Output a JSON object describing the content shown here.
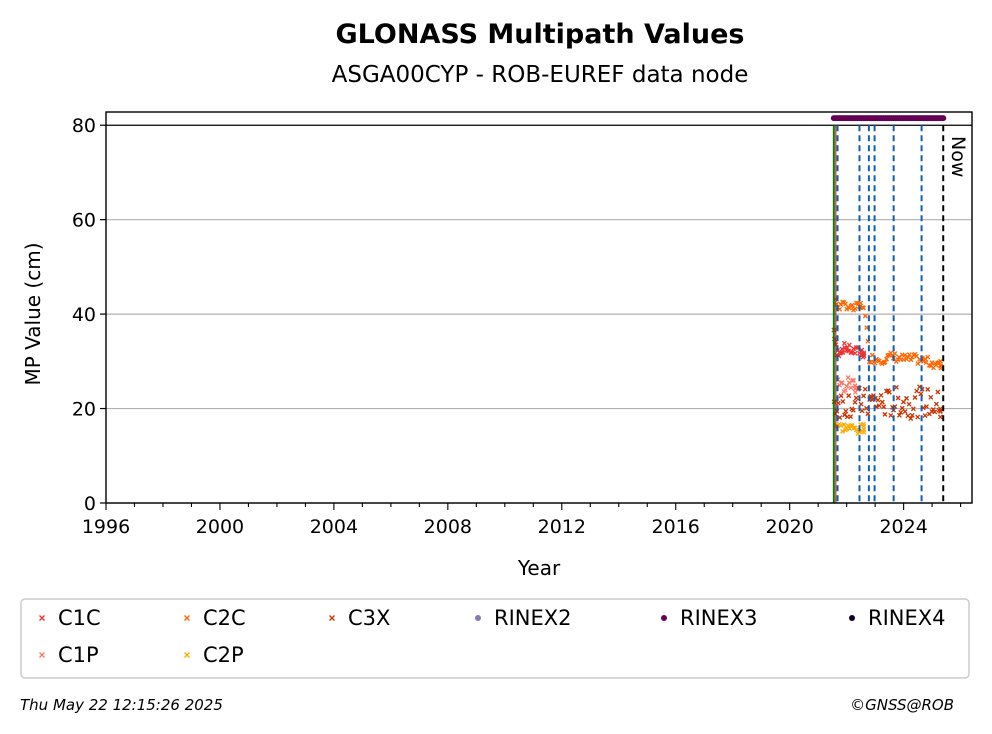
{
  "chart_data": {
    "type": "scatter",
    "title": "GLONASS Multipath Values",
    "subtitle": "ASGA00CYP - ROB-EUREF data node",
    "xlabel": "Year",
    "ylabel": "MP Value (cm)",
    "xlim": [
      1996,
      2026.4
    ],
    "ylim": [
      0,
      82.8
    ],
    "x_ticks": [
      "1996",
      "2000",
      "2004",
      "2008",
      "2012",
      "2016",
      "2020",
      "2024"
    ],
    "y_ticks": [
      "0",
      "20",
      "40",
      "60",
      "80"
    ],
    "grid": "horizontal",
    "reference_line_y": 80,
    "now_label": "Now",
    "now_x": 2025.39,
    "start_line_x": 2021.55,
    "event_lines_x": [
      2021.68,
      2022.45,
      2022.78,
      2022.98,
      2023.65,
      2024.63
    ],
    "series": [
      {
        "name": "C1C",
        "color": "#ee3333",
        "marker": "x",
        "points": [
          [
            2021.55,
            36.5
          ],
          [
            2021.65,
            31.5
          ],
          [
            2021.8,
            32.5
          ],
          [
            2021.95,
            33.0
          ],
          [
            2022.1,
            32.5
          ],
          [
            2022.3,
            32.0
          ],
          [
            2022.5,
            32.3
          ],
          [
            2022.6,
            31.5
          ]
        ]
      },
      {
        "name": "C2C",
        "color": "#ff6600",
        "marker": "x",
        "points": [
          [
            2021.6,
            42.5
          ],
          [
            2021.8,
            41.5
          ],
          [
            2022.0,
            42.0
          ],
          [
            2022.2,
            41.0
          ],
          [
            2022.4,
            41.5
          ],
          [
            2022.6,
            42.0
          ],
          [
            2022.8,
            30.8
          ],
          [
            2023.0,
            30.5
          ],
          [
            2023.3,
            30.5
          ],
          [
            2023.6,
            31.0
          ],
          [
            2024.0,
            30.5
          ],
          [
            2024.4,
            30.5
          ],
          [
            2024.8,
            30.0
          ],
          [
            2025.1,
            29.5
          ],
          [
            2025.3,
            29.2
          ]
        ]
      },
      {
        "name": "C3X",
        "color": "#cc3300",
        "marker": "x",
        "points": [
          [
            2021.55,
            21.0
          ],
          [
            2022.5,
            21.5
          ],
          [
            2022.7,
            21.0
          ],
          [
            2023.0,
            21.5
          ],
          [
            2023.4,
            21.0
          ],
          [
            2023.8,
            21.5
          ],
          [
            2024.2,
            21.0
          ],
          [
            2024.6,
            21.5
          ],
          [
            2025.0,
            21.0
          ],
          [
            2025.3,
            20.5
          ]
        ]
      },
      {
        "name": "RINEX2",
        "color": "#8877bb",
        "marker": "dot",
        "points": []
      },
      {
        "name": "RINEX3",
        "color": "#660055",
        "marker": "dot",
        "points": [
          [
            2021.55,
            81.5
          ],
          [
            2025.39,
            81.5
          ]
        ]
      },
      {
        "name": "RINEX4",
        "color": "#110022",
        "marker": "dot",
        "points": []
      },
      {
        "name": "C1P",
        "color": "#ff7766",
        "marker": "x",
        "points": [
          [
            2021.7,
            25.0
          ],
          [
            2021.9,
            24.5
          ],
          [
            2022.1,
            25.5
          ],
          [
            2022.3,
            25.0
          ]
        ]
      },
      {
        "name": "C2P",
        "color": "#ffaa00",
        "marker": "x",
        "points": [
          [
            2021.6,
            16.5
          ],
          [
            2021.8,
            16.0
          ],
          [
            2022.0,
            16.0
          ],
          [
            2022.2,
            15.8
          ],
          [
            2022.4,
            15.5
          ],
          [
            2022.6,
            15.8
          ]
        ]
      }
    ]
  },
  "legend": {
    "row1": [
      {
        "name": "C1C",
        "color": "#ee3333",
        "marker": "x"
      },
      {
        "name": "C2C",
        "color": "#ff6600",
        "marker": "x"
      },
      {
        "name": "C3X",
        "color": "#cc3300",
        "marker": "x"
      },
      {
        "name": "RINEX2",
        "color": "#8877bb",
        "marker": "dot"
      },
      {
        "name": "RINEX3",
        "color": "#660055",
        "marker": "dot"
      },
      {
        "name": "RINEX4",
        "color": "#110022",
        "marker": "dot"
      }
    ],
    "row2": [
      {
        "name": "C1P",
        "color": "#ff7766",
        "marker": "x"
      },
      {
        "name": "C2P",
        "color": "#ffaa00",
        "marker": "x"
      }
    ]
  },
  "footer": {
    "timestamp": "Thu May 22 12:15:26 2025",
    "copyright": "©GNSS@ROB"
  }
}
